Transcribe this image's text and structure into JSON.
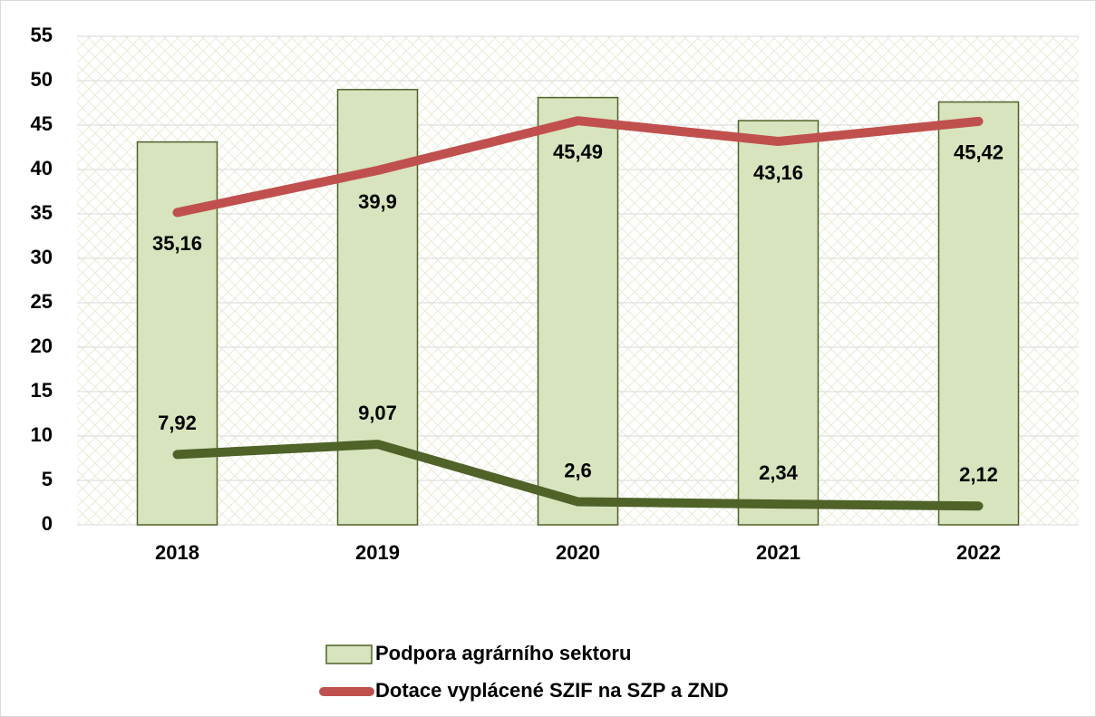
{
  "chart_data": {
    "type": "bar",
    "categories": [
      "2018",
      "2019",
      "2020",
      "2021",
      "2022"
    ],
    "series": [
      {
        "name": "Podpora agrárního sektoru",
        "type": "bar",
        "color": "#d7e4bd",
        "values": [
          43.1,
          49,
          48.1,
          45.5,
          47.6
        ]
      },
      {
        "name": "Dotace vyplácené SZIF na SZP a ZND",
        "type": "line",
        "color": "#c0504d",
        "values": [
          35.16,
          39.9,
          45.49,
          43.16,
          45.42
        ],
        "value_labels": [
          "35,16",
          "39,9",
          "45,49",
          "43,16",
          "45,42"
        ],
        "label_position": "below"
      },
      {
        "type": "line",
        "color": "#4f6228",
        "values": [
          7.92,
          9.07,
          2.6,
          2.34,
          2.12
        ],
        "value_labels": [
          "7,92",
          "9,07",
          "2,6",
          "2,34",
          "2,12"
        ],
        "label_position": "above"
      }
    ],
    "ylim": [
      0,
      55
    ],
    "yticks": [
      0,
      5,
      10,
      15,
      20,
      25,
      30,
      35,
      40,
      45,
      50,
      55
    ],
    "grid": true,
    "legend": "bottom"
  }
}
